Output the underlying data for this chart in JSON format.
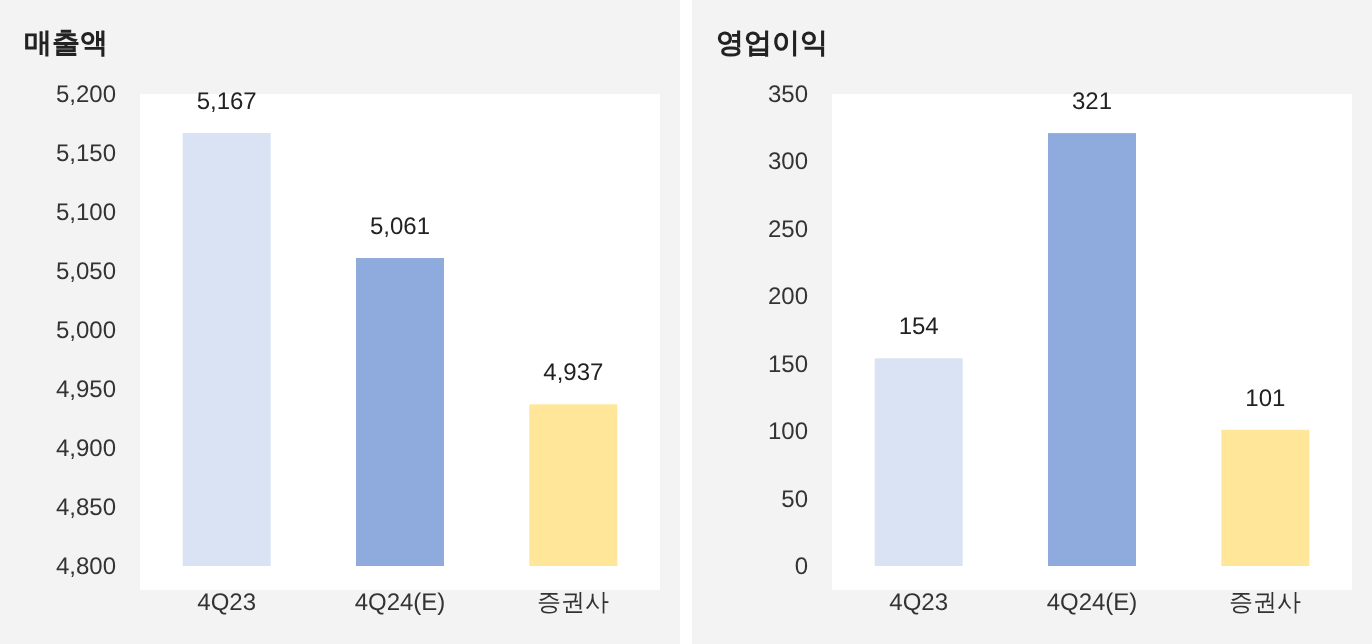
{
  "chart_data": [
    {
      "type": "bar",
      "title": "매출액",
      "categories": [
        "4Q23",
        "4Q24(E)",
        "증권사"
      ],
      "values": [
        5167,
        5061,
        4937
      ],
      "value_labels": [
        "5,167",
        "5,061",
        "4,937"
      ],
      "colors": [
        "#dae3f3",
        "#8faadc",
        "#ffe699"
      ],
      "ylim": [
        4800,
        5200
      ],
      "yticks": [
        {
          "value": 4800,
          "label": "4,800"
        },
        {
          "value": 4850,
          "label": "4,850"
        },
        {
          "value": 4900,
          "label": "4,900"
        },
        {
          "value": 4950,
          "label": "4,950"
        },
        {
          "value": 5000,
          "label": "5,000"
        },
        {
          "value": 5050,
          "label": "5,050"
        },
        {
          "value": 5100,
          "label": "5,100"
        },
        {
          "value": 5150,
          "label": "5,150"
        },
        {
          "value": 5200,
          "label": "5,200"
        }
      ]
    },
    {
      "type": "bar",
      "title": "영업이익",
      "categories": [
        "4Q23",
        "4Q24(E)",
        "증권사"
      ],
      "values": [
        154,
        321,
        101
      ],
      "colors": [
        "#dae3f3",
        "#8faadc",
        "#ffe699"
      ],
      "ylim": [
        0,
        350
      ],
      "yticks": [
        0,
        50,
        100,
        150,
        200,
        250,
        300,
        350
      ],
      "data_labels": true
    }
  ]
}
